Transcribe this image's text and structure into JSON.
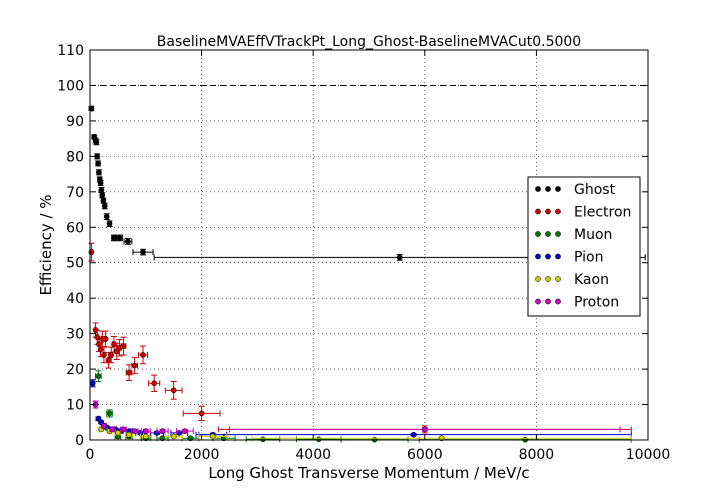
{
  "chart_data": {
    "type": "scatter",
    "title": "BaselineMVAEffVTrackPt_Long_Ghost-BaselineMVACut0.5000",
    "xlabel": "Long Ghost Transverse Momentum / MeV/c",
    "ylabel": "Efficiency / %",
    "xlim": [
      0,
      10000
    ],
    "ylim": [
      0,
      110
    ],
    "xticks": [
      0,
      2000,
      4000,
      6000,
      8000,
      10000
    ],
    "yticks": [
      0,
      10,
      20,
      30,
      40,
      50,
      60,
      70,
      80,
      90,
      100,
      110
    ],
    "grid": true,
    "reference_line": 100,
    "legend_position": "center-right",
    "series": [
      {
        "name": "Ghost",
        "color": "#000000",
        "points": [
          {
            "x": 25,
            "y": 93.5,
            "xerr": 25,
            "yerr": 0.5
          },
          {
            "x": 75,
            "y": 85.5,
            "xerr": 25,
            "yerr": 0.5
          },
          {
            "x": 100,
            "y": 84.5,
            "xerr": 12,
            "yerr": 0.7
          },
          {
            "x": 115,
            "y": 84.0,
            "xerr": 12,
            "yerr": 0.7
          },
          {
            "x": 130,
            "y": 80.0,
            "xerr": 12,
            "yerr": 0.7
          },
          {
            "x": 145,
            "y": 78.0,
            "xerr": 12,
            "yerr": 0.7
          },
          {
            "x": 160,
            "y": 75.5,
            "xerr": 12,
            "yerr": 0.7
          },
          {
            "x": 175,
            "y": 73.5,
            "xerr": 12,
            "yerr": 0.7
          },
          {
            "x": 190,
            "y": 72.5,
            "xerr": 12,
            "yerr": 0.7
          },
          {
            "x": 205,
            "y": 70.5,
            "xerr": 12,
            "yerr": 0.7
          },
          {
            "x": 220,
            "y": 69.0,
            "xerr": 12,
            "yerr": 0.7
          },
          {
            "x": 240,
            "y": 67.5,
            "xerr": 15,
            "yerr": 0.7
          },
          {
            "x": 265,
            "y": 66.0,
            "xerr": 15,
            "yerr": 0.8
          },
          {
            "x": 300,
            "y": 63.0,
            "xerr": 25,
            "yerr": 0.8
          },
          {
            "x": 350,
            "y": 61.0,
            "xerr": 25,
            "yerr": 0.8
          },
          {
            "x": 430,
            "y": 57.0,
            "xerr": 40,
            "yerr": 0.8
          },
          {
            "x": 530,
            "y": 57.0,
            "xerr": 50,
            "yerr": 0.8
          },
          {
            "x": 680,
            "y": 56.0,
            "xerr": 70,
            "yerr": 0.8
          },
          {
            "x": 950,
            "y": 53.0,
            "xerr": 180,
            "yerr": 0.8
          },
          {
            "x": 5550,
            "y": 51.5,
            "xerr": 4400,
            "yerr": 0.8
          }
        ]
      },
      {
        "name": "Electron",
        "color": "#cc0000",
        "points": [
          {
            "x": 25,
            "y": 53.0,
            "xerr": 25,
            "yerr": 2.5
          },
          {
            "x": 100,
            "y": 31.0,
            "xerr": 12,
            "yerr": 2.0
          },
          {
            "x": 130,
            "y": 29.0,
            "xerr": 12,
            "yerr": 2.0
          },
          {
            "x": 160,
            "y": 27.0,
            "xerr": 12,
            "yerr": 2.0
          },
          {
            "x": 190,
            "y": 25.5,
            "xerr": 12,
            "yerr": 2.0
          },
          {
            "x": 220,
            "y": 28.5,
            "xerr": 12,
            "yerr": 2.2
          },
          {
            "x": 250,
            "y": 24.0,
            "xerr": 15,
            "yerr": 2.2
          },
          {
            "x": 280,
            "y": 28.5,
            "xerr": 15,
            "yerr": 2.2
          },
          {
            "x": 330,
            "y": 22.5,
            "xerr": 25,
            "yerr": 2.2
          },
          {
            "x": 380,
            "y": 24.0,
            "xerr": 25,
            "yerr": 2.2
          },
          {
            "x": 430,
            "y": 27.0,
            "xerr": 30,
            "yerr": 2.2
          },
          {
            "x": 480,
            "y": 25.0,
            "xerr": 30,
            "yerr": 2.3
          },
          {
            "x": 530,
            "y": 26.0,
            "xerr": 30,
            "yerr": 2.3
          },
          {
            "x": 600,
            "y": 26.5,
            "xerr": 40,
            "yerr": 2.5
          },
          {
            "x": 700,
            "y": 19.0,
            "xerr": 50,
            "yerr": 2.2
          },
          {
            "x": 800,
            "y": 21.0,
            "xerr": 50,
            "yerr": 2.3
          },
          {
            "x": 950,
            "y": 24.0,
            "xerr": 80,
            "yerr": 2.5
          },
          {
            "x": 1150,
            "y": 16.0,
            "xerr": 100,
            "yerr": 2.3
          },
          {
            "x": 1500,
            "y": 14.0,
            "xerr": 150,
            "yerr": 2.5
          },
          {
            "x": 2000,
            "y": 7.5,
            "xerr": 330,
            "yerr": 2.0
          },
          {
            "x": 6000,
            "y": 3.0,
            "xerr": 3700,
            "yerr": 1.0
          }
        ]
      },
      {
        "name": "Muon",
        "color": "#007700",
        "points": [
          {
            "x": 150,
            "y": 18.0,
            "xerr": 50,
            "yerr": 1.5
          },
          {
            "x": 350,
            "y": 7.5,
            "xerr": 50,
            "yerr": 1.0
          },
          {
            "x": 500,
            "y": 1.0,
            "xerr": 50,
            "yerr": 0.5
          },
          {
            "x": 700,
            "y": 1.0,
            "xerr": 60,
            "yerr": 0.5
          },
          {
            "x": 1000,
            "y": 0.5,
            "xerr": 80,
            "yerr": 0.3
          },
          {
            "x": 1300,
            "y": 0.5,
            "xerr": 100,
            "yerr": 0.3
          },
          {
            "x": 1800,
            "y": 0.5,
            "xerr": 150,
            "yerr": 0.3
          },
          {
            "x": 2400,
            "y": 0.5,
            "xerr": 200,
            "yerr": 0.3
          },
          {
            "x": 3100,
            "y": 0.2,
            "xerr": 300,
            "yerr": 0.2
          },
          {
            "x": 4100,
            "y": 0.2,
            "xerr": 400,
            "yerr": 0.2
          },
          {
            "x": 5100,
            "y": 0.1,
            "xerr": 600,
            "yerr": 0.1
          },
          {
            "x": 7800,
            "y": 0.1,
            "xerr": 1900,
            "yerr": 0.1
          }
        ]
      },
      {
        "name": "Pion",
        "color": "#0000cc",
        "points": [
          {
            "x": 50,
            "y": 16.0,
            "xerr": 25,
            "yerr": 1.0
          },
          {
            "x": 150,
            "y": 6.0,
            "xerr": 15,
            "yerr": 0.5
          },
          {
            "x": 200,
            "y": 5.0,
            "xerr": 15,
            "yerr": 0.4
          },
          {
            "x": 250,
            "y": 4.0,
            "xerr": 20,
            "yerr": 0.4
          },
          {
            "x": 300,
            "y": 3.5,
            "xerr": 20,
            "yerr": 0.4
          },
          {
            "x": 350,
            "y": 3.0,
            "xerr": 25,
            "yerr": 0.4
          },
          {
            "x": 450,
            "y": 3.0,
            "xerr": 30,
            "yerr": 0.4
          },
          {
            "x": 550,
            "y": 2.5,
            "xerr": 40,
            "yerr": 0.4
          },
          {
            "x": 700,
            "y": 2.5,
            "xerr": 60,
            "yerr": 0.4
          },
          {
            "x": 900,
            "y": 2.0,
            "xerr": 80,
            "yerr": 0.4
          },
          {
            "x": 1200,
            "y": 2.0,
            "xerr": 120,
            "yerr": 0.4
          },
          {
            "x": 1600,
            "y": 2.0,
            "xerr": 150,
            "yerr": 0.4
          },
          {
            "x": 2200,
            "y": 1.5,
            "xerr": 250,
            "yerr": 0.4
          },
          {
            "x": 5800,
            "y": 1.5,
            "xerr": 3900,
            "yerr": 0.3
          }
        ]
      },
      {
        "name": "Kaon",
        "color": "#cccc00",
        "points": [
          {
            "x": 200,
            "y": 3.0,
            "xerr": 30,
            "yerr": 0.5
          },
          {
            "x": 350,
            "y": 2.5,
            "xerr": 40,
            "yerr": 0.5
          },
          {
            "x": 500,
            "y": 2.0,
            "xerr": 50,
            "yerr": 0.5
          },
          {
            "x": 700,
            "y": 1.5,
            "xerr": 60,
            "yerr": 0.5
          },
          {
            "x": 1000,
            "y": 1.0,
            "xerr": 100,
            "yerr": 0.4
          },
          {
            "x": 1500,
            "y": 1.0,
            "xerr": 150,
            "yerr": 0.4
          },
          {
            "x": 2200,
            "y": 1.0,
            "xerr": 250,
            "yerr": 0.4
          },
          {
            "x": 6300,
            "y": 0.5,
            "xerr": 3400,
            "yerr": 0.3
          }
        ]
      },
      {
        "name": "Proton",
        "color": "#cc00cc",
        "points": [
          {
            "x": 100,
            "y": 10.0,
            "xerr": 30,
            "yerr": 1.0
          },
          {
            "x": 250,
            "y": 4.0,
            "xerr": 30,
            "yerr": 0.6
          },
          {
            "x": 400,
            "y": 3.0,
            "xerr": 40,
            "yerr": 0.5
          },
          {
            "x": 600,
            "y": 3.0,
            "xerr": 50,
            "yerr": 0.5
          },
          {
            "x": 800,
            "y": 2.5,
            "xerr": 60,
            "yerr": 0.5
          },
          {
            "x": 1000,
            "y": 2.5,
            "xerr": 80,
            "yerr": 0.5
          },
          {
            "x": 1300,
            "y": 2.5,
            "xerr": 100,
            "yerr": 0.5
          },
          {
            "x": 1700,
            "y": 2.5,
            "xerr": 150,
            "yerr": 0.5
          },
          {
            "x": 6000,
            "y": 3.0,
            "xerr": 3500,
            "yerr": 0.5
          }
        ]
      }
    ]
  }
}
